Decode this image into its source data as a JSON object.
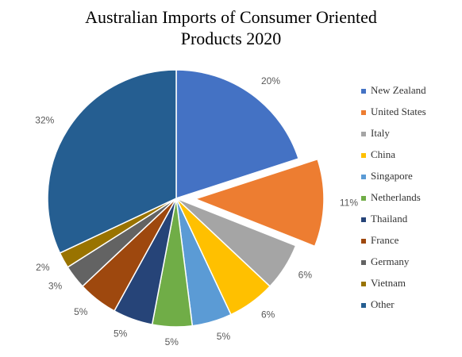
{
  "chart_data": {
    "type": "pie",
    "title": "Australian Imports of Consumer Oriented Products 2020",
    "categories": [
      "New Zealand",
      "United States",
      "Italy",
      "China",
      "Singapore",
      "Netherlands",
      "Thailand",
      "France",
      "Germany",
      "Vietnam",
      "Other"
    ],
    "values": [
      20,
      11,
      6,
      6,
      5,
      5,
      5,
      5,
      3,
      2,
      32
    ],
    "value_labels": [
      "20%",
      "11%",
      "6%",
      "6%",
      "5%",
      "5%",
      "5%",
      "5%",
      "3%",
      "2%",
      "32%"
    ],
    "colors": [
      "#4472c4",
      "#ed7d31",
      "#a5a5a5",
      "#ffc000",
      "#5b9bd5",
      "#70ad47",
      "#264478",
      "#9e480e",
      "#636363",
      "#997300",
      "#255e91"
    ],
    "exploded": [
      "United States"
    ],
    "legend": "right"
  }
}
